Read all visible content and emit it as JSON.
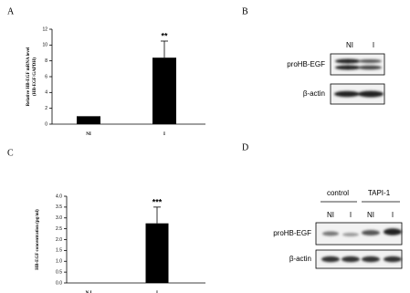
{
  "panel_labels": [
    "A",
    "B",
    "C",
    "D"
  ],
  "chart_data": [
    {
      "type": "bar",
      "y_label": [
        "Relative HB-EGF mRNA level",
        "(HB-EGF/GAPDH)"
      ],
      "categories": [
        "NI",
        "I"
      ],
      "values": [
        1,
        8.4
      ],
      "errors": [
        null,
        2.1
      ],
      "annotation": "**",
      "color": "#000000",
      "ylim": [
        0,
        12
      ],
      "yticks": [
        0,
        2,
        4,
        6,
        8,
        10,
        12
      ]
    },
    {
      "type": "bar",
      "y_label": [
        "HB-EGF concentration (pg/ml)"
      ],
      "categories": [
        "N I",
        "I"
      ],
      "values": [
        0,
        2.75
      ],
      "errors": [
        null,
        0.75
      ],
      "annotation": "***",
      "color": "#000000",
      "ylim": [
        0,
        4
      ],
      "yticks": [
        {
          "value": 0,
          "label": "0.0"
        },
        {
          "value": 0.5,
          "label": "0.5"
        },
        {
          "value": 1,
          "label": "1.0"
        },
        {
          "value": 1.5,
          "label": "1.5"
        },
        {
          "value": 2,
          "label": "2.0"
        },
        {
          "value": 2.5,
          "label": "2.5"
        },
        {
          "value": 3,
          "label": "3.0"
        },
        {
          "value": 3.5,
          "label": "3.5"
        },
        {
          "value": 4,
          "label": "4.0"
        }
      ]
    }
  ],
  "blots": {
    "B": {
      "lanes": [
        "NI",
        "I"
      ],
      "rows": [
        "proHB-EGF",
        "β-actin"
      ]
    },
    "D": {
      "groups": [
        "control",
        "TAPI-1"
      ],
      "lanes": [
        "NI",
        "I",
        "NI",
        "I"
      ],
      "rows": [
        "proHB-EGF",
        "β-actin"
      ]
    }
  }
}
